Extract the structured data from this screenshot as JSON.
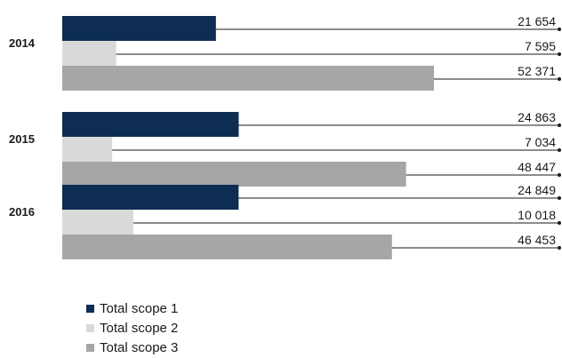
{
  "chart_data": {
    "type": "bar",
    "orientation": "horizontal",
    "categories": [
      "2014",
      "2015",
      "2016"
    ],
    "series": [
      {
        "name": "Total scope 1",
        "color": "#0d2d52",
        "values": [
          21654,
          24863,
          24849
        ],
        "labels": [
          "21 654",
          "24 863",
          "24 849"
        ]
      },
      {
        "name": "Total scope 2",
        "color": "#d9d9d9",
        "values": [
          7595,
          7034,
          10018
        ],
        "labels": [
          "7 595",
          "7 034",
          "10 018"
        ]
      },
      {
        "name": "Total scope 3",
        "color": "#a6a6a6",
        "values": [
          52371,
          48447,
          46453
        ],
        "labels": [
          "52 371",
          "48 447",
          "46 453"
        ]
      }
    ],
    "xlim": [
      0,
      52371
    ],
    "grid": false,
    "legend_position": "bottom-left"
  }
}
